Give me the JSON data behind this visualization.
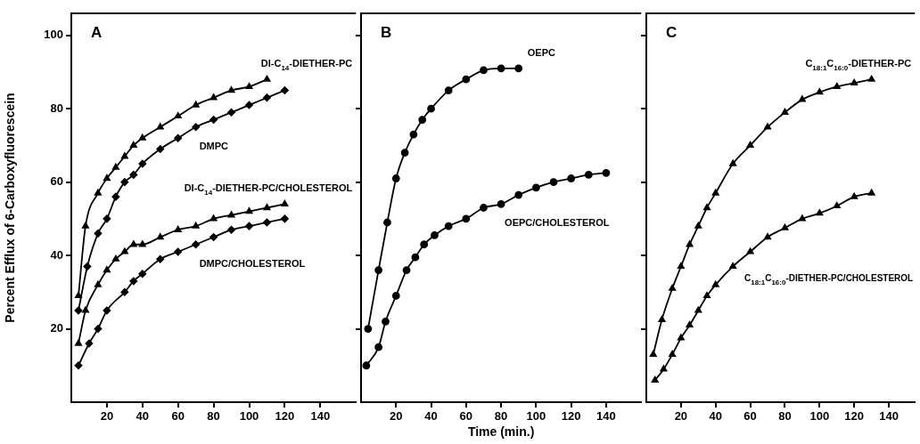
{
  "chart_data": [
    {
      "type": "line",
      "title": "A",
      "ylabel": "Percent Efflux of 6-Carboxyfluorescein",
      "xlim": [
        0,
        160
      ],
      "xticks": [
        20,
        40,
        60,
        80,
        100,
        120,
        140
      ],
      "ylim": [
        0,
        106
      ],
      "yticks": [
        20,
        40,
        60,
        80,
        100
      ],
      "grid": false,
      "legend": false,
      "series": [
        {
          "name": "DI-C$_{14}$-DIETHER-PC",
          "color": "#000000",
          "marker": "triangle",
          "x": [
            4,
            8,
            15,
            20,
            25,
            30,
            35,
            40,
            50,
            60,
            70,
            80,
            90,
            100,
            110
          ],
          "values": [
            29,
            48,
            57,
            61,
            64,
            67,
            70,
            72,
            75,
            78,
            81,
            83,
            85,
            86,
            88
          ]
        },
        {
          "name": "DMPC",
          "color": "#000000",
          "marker": "diamond",
          "x": [
            4,
            9,
            15,
            20,
            25,
            30,
            35,
            40,
            50,
            60,
            70,
            80,
            90,
            100,
            110,
            120
          ],
          "values": [
            25,
            37,
            46,
            50,
            56,
            60,
            62,
            65,
            69,
            72,
            75,
            77,
            79,
            81,
            83,
            85
          ]
        },
        {
          "name": "DI-C$_{14}$-DIETHER-PC/CHOLESTEROL",
          "color": "#000000",
          "marker": "triangle",
          "x": [
            4,
            8,
            15,
            20,
            25,
            30,
            35,
            40,
            50,
            60,
            70,
            80,
            90,
            100,
            110,
            120
          ],
          "values": [
            16,
            25,
            32,
            36,
            39,
            41,
            43,
            43,
            45,
            47,
            48,
            50,
            51,
            52,
            53,
            54
          ]
        },
        {
          "name": "DMPC/CHOLESTEROL",
          "color": "#000000",
          "marker": "diamond",
          "x": [
            4,
            10,
            15,
            20,
            30,
            35,
            40,
            50,
            60,
            70,
            80,
            90,
            100,
            110,
            120
          ],
          "values": [
            10,
            16,
            20,
            25,
            30,
            33,
            35,
            39,
            41,
            43,
            45,
            47,
            48,
            49,
            50
          ]
        }
      ]
    },
    {
      "type": "line",
      "title": "B",
      "xlabel": "Time (min.)",
      "xlim": [
        0,
        160
      ],
      "xticks": [
        20,
        40,
        60,
        80,
        100,
        120,
        140
      ],
      "ylim": [
        0,
        106
      ],
      "yticks": [
        20,
        40,
        60,
        80,
        100
      ],
      "tick_labels": "x",
      "grid": false,
      "legend": false,
      "series": [
        {
          "name": "OEPC",
          "color": "#000000",
          "marker": "circle",
          "x": [
            4,
            10,
            15,
            20,
            25,
            30,
            35,
            40,
            50,
            60,
            70,
            80,
            90
          ],
          "values": [
            20,
            36,
            49,
            61,
            68,
            73,
            77,
            80,
            85,
            88,
            90.5,
            91,
            91
          ]
        },
        {
          "name": "OEPC/CHOLESTEROL",
          "color": "#000000",
          "marker": "circle",
          "x": [
            3,
            10,
            14,
            20,
            26,
            31,
            36,
            42,
            50,
            60,
            70,
            80,
            90,
            100,
            110,
            120,
            130,
            140
          ],
          "values": [
            10,
            15,
            22,
            29,
            36,
            39.5,
            43,
            45.5,
            48,
            50,
            53,
            54,
            56.5,
            58.5,
            60,
            61,
            62,
            62.5
          ]
        }
      ]
    },
    {
      "type": "line",
      "title": "C",
      "xlim": [
        0,
        155
      ],
      "xticks": [
        20,
        40,
        60,
        80,
        100,
        120,
        140
      ],
      "ylim": [
        0,
        106
      ],
      "yticks": [
        20,
        40,
        60,
        80,
        100
      ],
      "tick_labels": "x",
      "grid": false,
      "legend": false,
      "series": [
        {
          "name": "C$_{18:1}$C$_{16:0}$-DIETHER-PC",
          "color": "#000000",
          "marker": "triangle",
          "x": [
            4,
            9,
            15,
            20,
            25,
            30,
            35,
            40,
            50,
            60,
            70,
            80,
            90,
            100,
            110,
            120,
            130
          ],
          "values": [
            13,
            22.5,
            31,
            37,
            43,
            48,
            53,
            57,
            65,
            70,
            75,
            79,
            82.5,
            84.5,
            86,
            87,
            88
          ]
        },
        {
          "name": "C$_{18:1}$C$_{16:0}$-DIETHER-PC/CHOLESTEROL",
          "color": "#000000",
          "marker": "triangle",
          "x": [
            5,
            10,
            15,
            20,
            25,
            30,
            35,
            40,
            50,
            60,
            70,
            80,
            90,
            100,
            110,
            120,
            130
          ],
          "values": [
            6,
            9,
            13,
            17.5,
            21,
            25,
            29,
            32,
            37,
            41,
            45,
            47.5,
            50,
            51.5,
            53.5,
            56,
            57
          ]
        }
      ]
    }
  ]
}
